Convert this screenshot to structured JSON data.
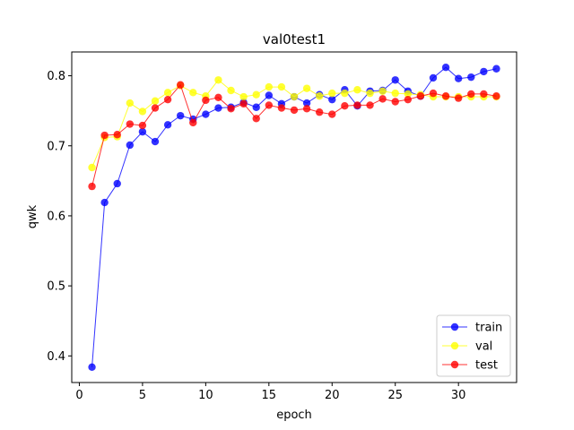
{
  "chart_data": {
    "type": "line",
    "title": "val0test1",
    "xlabel": "epoch",
    "ylabel": "qwk",
    "xlim": [
      -0.6,
      34.6
    ],
    "ylim": [
      0.362,
      0.834
    ],
    "xticks": [
      0,
      5,
      10,
      15,
      20,
      25,
      30
    ],
    "yticks": [
      0.4,
      0.5,
      0.6,
      0.7,
      0.8
    ],
    "ytick_labels": [
      "0.4",
      "0.5",
      "0.6",
      "0.7",
      "0.8"
    ],
    "grid": false,
    "legend": "lower-right",
    "x": [
      1,
      2,
      3,
      4,
      5,
      6,
      7,
      8,
      9,
      10,
      11,
      12,
      13,
      14,
      15,
      16,
      17,
      18,
      19,
      20,
      21,
      22,
      23,
      24,
      25,
      26,
      27,
      28,
      29,
      30,
      31,
      32,
      33
    ],
    "series": [
      {
        "name": "train",
        "color": "#0000ff",
        "values": [
          0.384,
          0.619,
          0.646,
          0.701,
          0.72,
          0.706,
          0.73,
          0.743,
          0.738,
          0.745,
          0.754,
          0.755,
          0.762,
          0.755,
          0.772,
          0.76,
          0.77,
          0.761,
          0.773,
          0.766,
          0.78,
          0.757,
          0.778,
          0.779,
          0.794,
          0.778,
          0.771,
          0.797,
          0.812,
          0.796,
          0.798,
          0.806,
          0.81
        ]
      },
      {
        "name": "val",
        "color": "#ffff00",
        "values": [
          0.669,
          0.712,
          0.713,
          0.761,
          0.749,
          0.764,
          0.776,
          0.786,
          0.776,
          0.771,
          0.794,
          0.779,
          0.77,
          0.773,
          0.784,
          0.784,
          0.77,
          0.782,
          0.771,
          0.775,
          0.775,
          0.78,
          0.775,
          0.778,
          0.775,
          0.774,
          0.773,
          0.77,
          0.77,
          0.77,
          0.77,
          0.77,
          0.77
        ]
      },
      {
        "name": "test",
        "color": "#ff0000",
        "values": [
          0.642,
          0.715,
          0.716,
          0.731,
          0.729,
          0.754,
          0.766,
          0.787,
          0.733,
          0.765,
          0.769,
          0.753,
          0.76,
          0.739,
          0.758,
          0.754,
          0.751,
          0.753,
          0.748,
          0.745,
          0.757,
          0.758,
          0.758,
          0.767,
          0.763,
          0.766,
          0.771,
          0.775,
          0.771,
          0.768,
          0.774,
          0.774,
          0.771
        ]
      }
    ]
  }
}
